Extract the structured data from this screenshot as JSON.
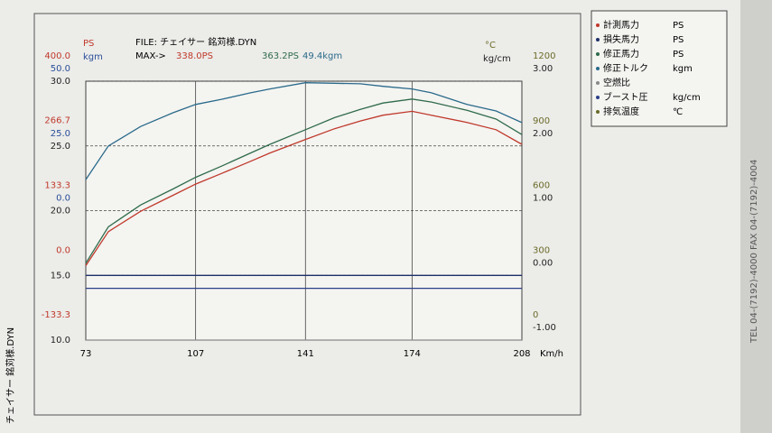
{
  "chart_data": {
    "type": "line",
    "file_label": "FILE: チェイサー 銘苅様.DYN",
    "max_label": "MAX->",
    "max_values": [
      {
        "text": "338.0PS",
        "color": "#c0392b"
      },
      {
        "text": "363.2PS",
        "color": "#2f6b4a"
      },
      {
        "text": "49.4kgm",
        "color": "#2a6a8a"
      }
    ],
    "x": [
      73,
      80,
      90,
      100,
      107,
      115,
      124,
      130,
      141,
      150,
      158,
      165,
      174,
      180,
      191,
      200,
      208
    ],
    "xlim": [
      73,
      208
    ],
    "xticks": [
      73,
      107,
      141,
      174,
      208
    ],
    "xlabel": "Km/h",
    "grid": true,
    "axes": [
      {
        "title": "PS",
        "side": "left",
        "color": "#c0392b",
        "ylim": [
          -133.3,
          400
        ],
        "yticks": [
          {
            "value": 400,
            "label": "400.0"
          },
          266.7,
          133.3,
          {
            "value": 0,
            "label": "0.0"
          },
          -133.3
        ]
      },
      {
        "title": "kgm",
        "side": "left",
        "color": "#2a4f9a",
        "ylim": [
          -50,
          50
        ],
        "yticks": [
          {
            "value": 50,
            "label": "50.0"
          },
          {
            "value": 25,
            "label": "25.0"
          },
          {
            "value": 0,
            "label": "0.0"
          }
        ]
      },
      {
        "side": "left",
        "color": "#222222",
        "ylim": [
          10,
          30
        ],
        "yticks": [
          {
            "value": 30,
            "label": "30.0"
          },
          {
            "value": 25,
            "label": "25.0"
          },
          {
            "value": 20,
            "label": "20.0"
          },
          {
            "value": 15,
            "label": "15.0"
          },
          {
            "value": 10,
            "label": "10.0"
          }
        ]
      },
      {
        "title": "°C",
        "side": "right",
        "color": "#6b6b2a",
        "ylim": [
          0,
          1200
        ],
        "yticks": [
          1200,
          900,
          600,
          300,
          0
        ]
      },
      {
        "title": "kg/cm",
        "side": "right",
        "color": "#222222",
        "ylim": [
          -1,
          3
        ],
        "yticks": [
          {
            "value": 3,
            "label": "3.00"
          },
          {
            "value": 2,
            "label": "2.00"
          },
          {
            "value": 1,
            "label": "1.00"
          },
          {
            "value": 0,
            "label": "0.00"
          },
          {
            "value": -1,
            "label": "-1.00"
          }
        ]
      }
    ],
    "series": [
      {
        "name": "計測馬力",
        "unit": "PS",
        "color": "#c0392b",
        "axis": 0,
        "values": [
          20,
          90,
          132,
          165,
          188,
          210,
          235,
          252,
          280,
          302,
          318,
          330,
          338,
          330,
          315,
          300,
          270
        ]
      },
      {
        "name": "損失馬力",
        "unit": "PS",
        "color": "#1f2f6a",
        "axis": 0,
        "values": [
          0,
          0,
          0,
          0,
          0,
          0,
          0,
          0,
          0,
          0,
          0,
          0,
          0,
          0,
          0,
          0,
          0
        ]
      },
      {
        "name": "修正馬力",
        "unit": "PS",
        "color": "#2f6b4a",
        "axis": 0,
        "values": [
          25,
          100,
          145,
          178,
          202,
          225,
          252,
          270,
          300,
          325,
          342,
          355,
          363.2,
          357,
          340,
          322,
          290
        ]
      },
      {
        "name": "修正トルク",
        "unit": "kgm",
        "color": "#2a6a8a",
        "axis": 1,
        "values": [
          12,
          25,
          32.5,
          37.8,
          41,
          43,
          45.5,
          47,
          49.4,
          49.2,
          49,
          48,
          47,
          45.5,
          41,
          38.5,
          34
        ]
      },
      {
        "name": "空燃比",
        "color": "#8a8a8a",
        "axis": 2,
        "values": [
          10,
          10,
          10,
          10,
          10,
          10,
          10,
          10,
          10,
          10,
          10,
          10,
          10,
          10,
          10,
          10,
          10
        ]
      },
      {
        "name": "ブースト圧",
        "unit": "kg/cm",
        "color": "#2a3f8a",
        "axis": 4,
        "values": [
          -0.2,
          -0.2,
          -0.2,
          -0.2,
          -0.2,
          -0.2,
          -0.2,
          -0.2,
          -0.2,
          -0.2,
          -0.2,
          -0.2,
          -0.2,
          -0.2,
          -0.2,
          -0.2,
          -0.2
        ]
      },
      {
        "name": "排気温度",
        "unit": "℃",
        "color": "#6b6b2a",
        "axis": 3,
        "values": [
          null,
          null,
          null,
          null,
          null,
          null,
          null,
          null,
          null,
          null,
          null,
          null,
          null,
          null,
          null,
          null,
          null
        ]
      }
    ],
    "footer_left": "チェイサー 銘苅様.DYN",
    "side_text": "TEL 04-(7192)-4000  FAX 04-(7192)-4004"
  }
}
